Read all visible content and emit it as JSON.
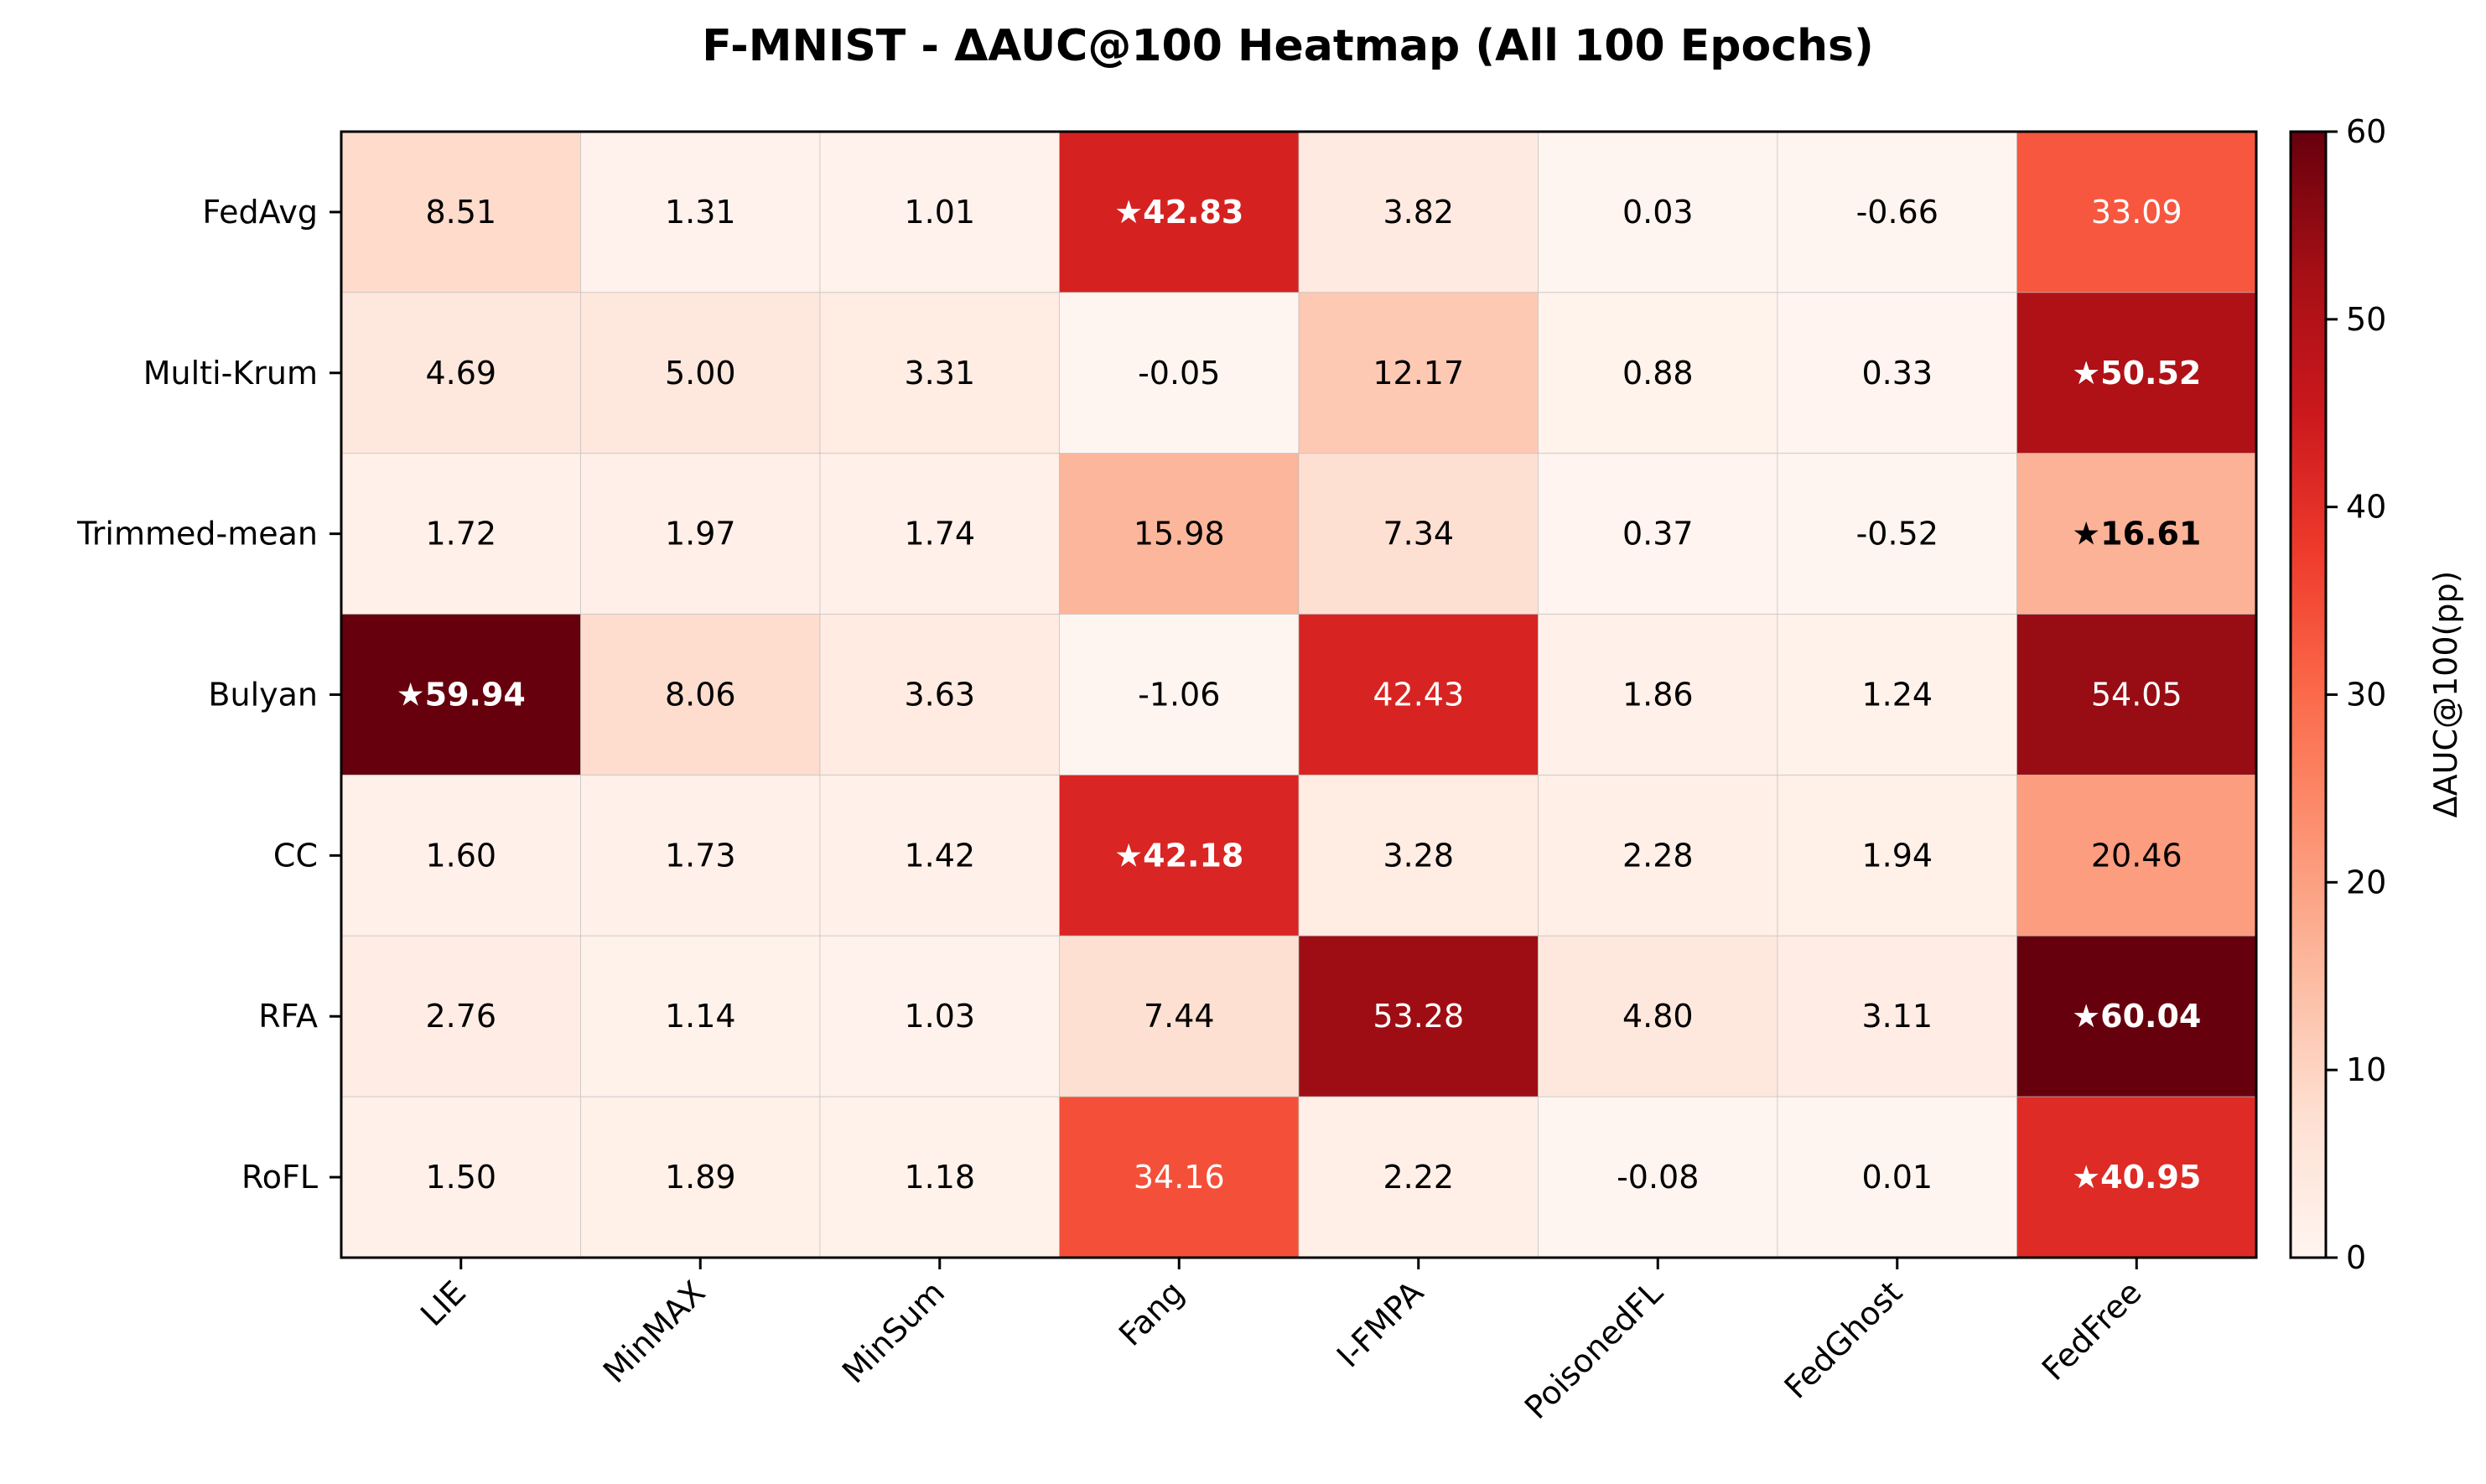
{
  "chart_data": {
    "type": "heatmap",
    "title": "F-MNIST - ΔAUC@100 Heatmap (All 100 Epochs)",
    "xlabel": "",
    "ylabel": "",
    "columns": [
      "LIE",
      "MinMAX",
      "MinSum",
      "Fang",
      "I-FMPA",
      "PoisonedFL",
      "FedGhost",
      "FedFree"
    ],
    "rows": [
      "FedAvg",
      "Multi-Krum",
      "Trimmed-mean",
      "Bulyan",
      "CC",
      "RFA",
      "RoFL"
    ],
    "values": [
      [
        8.51,
        1.31,
        1.01,
        42.83,
        3.82,
        0.03,
        -0.66,
        33.09
      ],
      [
        4.69,
        5.0,
        3.31,
        -0.05,
        12.17,
        0.88,
        0.33,
        50.52
      ],
      [
        1.72,
        1.97,
        1.74,
        15.98,
        7.34,
        0.37,
        -0.52,
        16.61
      ],
      [
        59.94,
        8.06,
        3.63,
        -1.06,
        42.43,
        1.86,
        1.24,
        54.05
      ],
      [
        1.6,
        1.73,
        1.42,
        42.18,
        3.28,
        2.28,
        1.94,
        20.46
      ],
      [
        2.76,
        1.14,
        1.03,
        7.44,
        53.28,
        4.8,
        3.11,
        60.04
      ],
      [
        1.5,
        1.89,
        1.18,
        34.16,
        2.22,
        -0.08,
        0.01,
        40.95
      ]
    ],
    "cell_labels": [
      [
        "8.51",
        "1.31",
        "1.01",
        "★42.83",
        "3.82",
        "0.03",
        "-0.66",
        "33.09"
      ],
      [
        "4.69",
        "5.00",
        "3.31",
        "-0.05",
        "12.17",
        "0.88",
        "0.33",
        "★50.52"
      ],
      [
        "1.72",
        "1.97",
        "1.74",
        "15.98",
        "7.34",
        "0.37",
        "-0.52",
        "★16.61"
      ],
      [
        "★59.94",
        "8.06",
        "3.63",
        "-1.06",
        "42.43",
        "1.86",
        "1.24",
        "54.05"
      ],
      [
        "1.60",
        "1.73",
        "1.42",
        "★42.18",
        "3.28",
        "2.28",
        "1.94",
        "20.46"
      ],
      [
        "2.76",
        "1.14",
        "1.03",
        "7.44",
        "53.28",
        "4.80",
        "3.11",
        "★60.04"
      ],
      [
        "1.50",
        "1.89",
        "1.18",
        "34.16",
        "2.22",
        "-0.08",
        "0.01",
        "★40.95"
      ]
    ],
    "highlighted": [
      [
        0,
        3
      ],
      [
        1,
        7
      ],
      [
        2,
        7
      ],
      [
        3,
        0
      ],
      [
        4,
        3
      ],
      [
        5,
        7
      ],
      [
        6,
        7
      ]
    ],
    "colorbar": {
      "label": "ΔAUC@100(pp)",
      "range": [
        0,
        60
      ],
      "ticks": [
        "0",
        "10",
        "20",
        "30",
        "40",
        "50",
        "60"
      ],
      "colormap": "Reds"
    },
    "grid": false
  }
}
